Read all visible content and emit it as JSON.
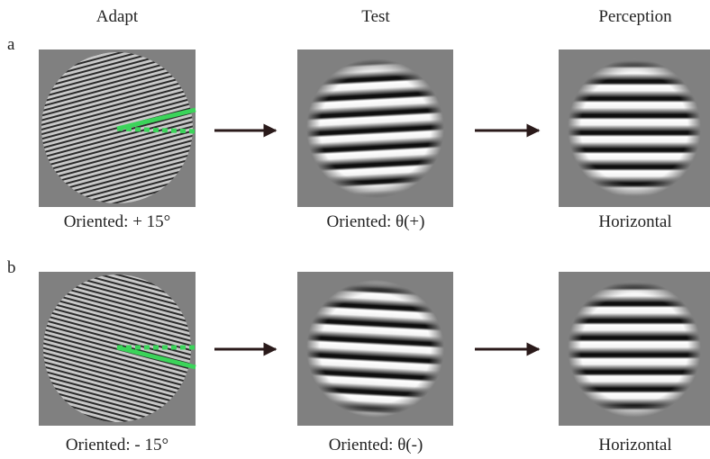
{
  "headers": {
    "adapt": "Adapt",
    "test": "Test",
    "perception": "Perception"
  },
  "rows": [
    {
      "label": "a",
      "captions": [
        "Oriented: + 15°",
        "Oriented: θ(+)",
        "Horizontal"
      ]
    },
    {
      "label": "b",
      "captions": [
        "Oriented: - 15°",
        "Oriented: θ(-)",
        "Horizontal"
      ]
    }
  ]
}
